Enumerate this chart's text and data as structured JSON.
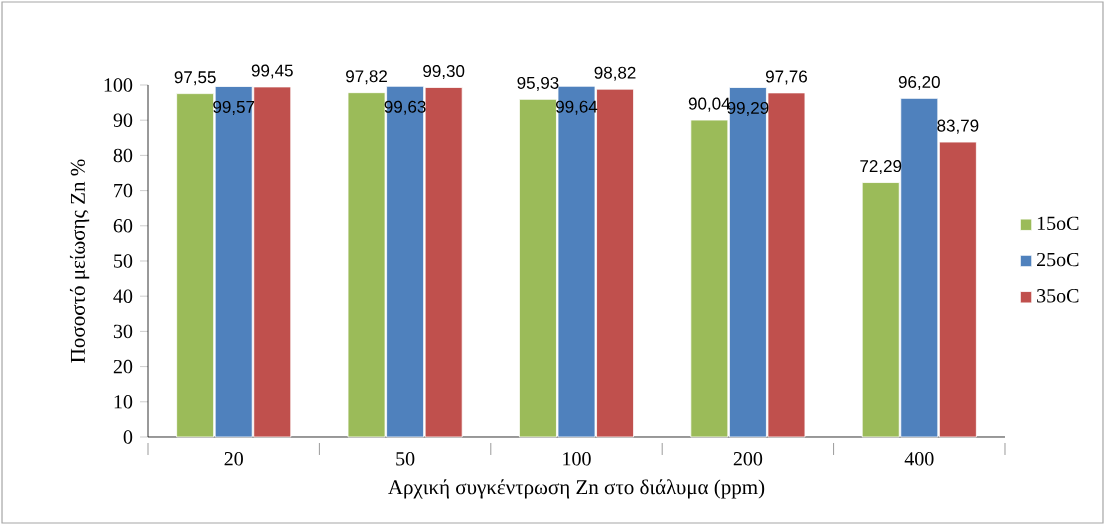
{
  "chart_data": {
    "type": "bar",
    "xlabel": "Αρχική συγκέντρωση Zn στο διάλυμα (ppm)",
    "ylabel": "Ποσοστό μείωσης Zn %",
    "categories": [
      "20",
      "50",
      "100",
      "200",
      "400"
    ],
    "series": [
      {
        "name": "15oC",
        "color": "#9bbb59",
        "values": [
          97.55,
          97.82,
          95.93,
          90.04,
          72.29
        ],
        "value_labels": [
          "97,55",
          "97,82",
          "95,93",
          "90,04",
          "72,29"
        ]
      },
      {
        "name": "25oC",
        "color": "#4f81bd",
        "values": [
          99.57,
          99.63,
          99.64,
          99.29,
          96.2
        ],
        "value_labels": [
          "99,57",
          "99,63",
          "99,64",
          "99,29",
          "96,20"
        ]
      },
      {
        "name": "35oC",
        "color": "#c0504d",
        "values": [
          99.45,
          99.3,
          98.82,
          97.76,
          83.79
        ],
        "value_labels": [
          "99,45",
          "99,30",
          "98,82",
          "97,76",
          "83,79"
        ]
      }
    ],
    "ylim": [
      0,
      100
    ],
    "yticks": [
      0,
      10,
      20,
      30,
      40,
      50,
      60,
      70,
      80,
      90,
      100
    ],
    "grid": false,
    "legend": "right"
  }
}
